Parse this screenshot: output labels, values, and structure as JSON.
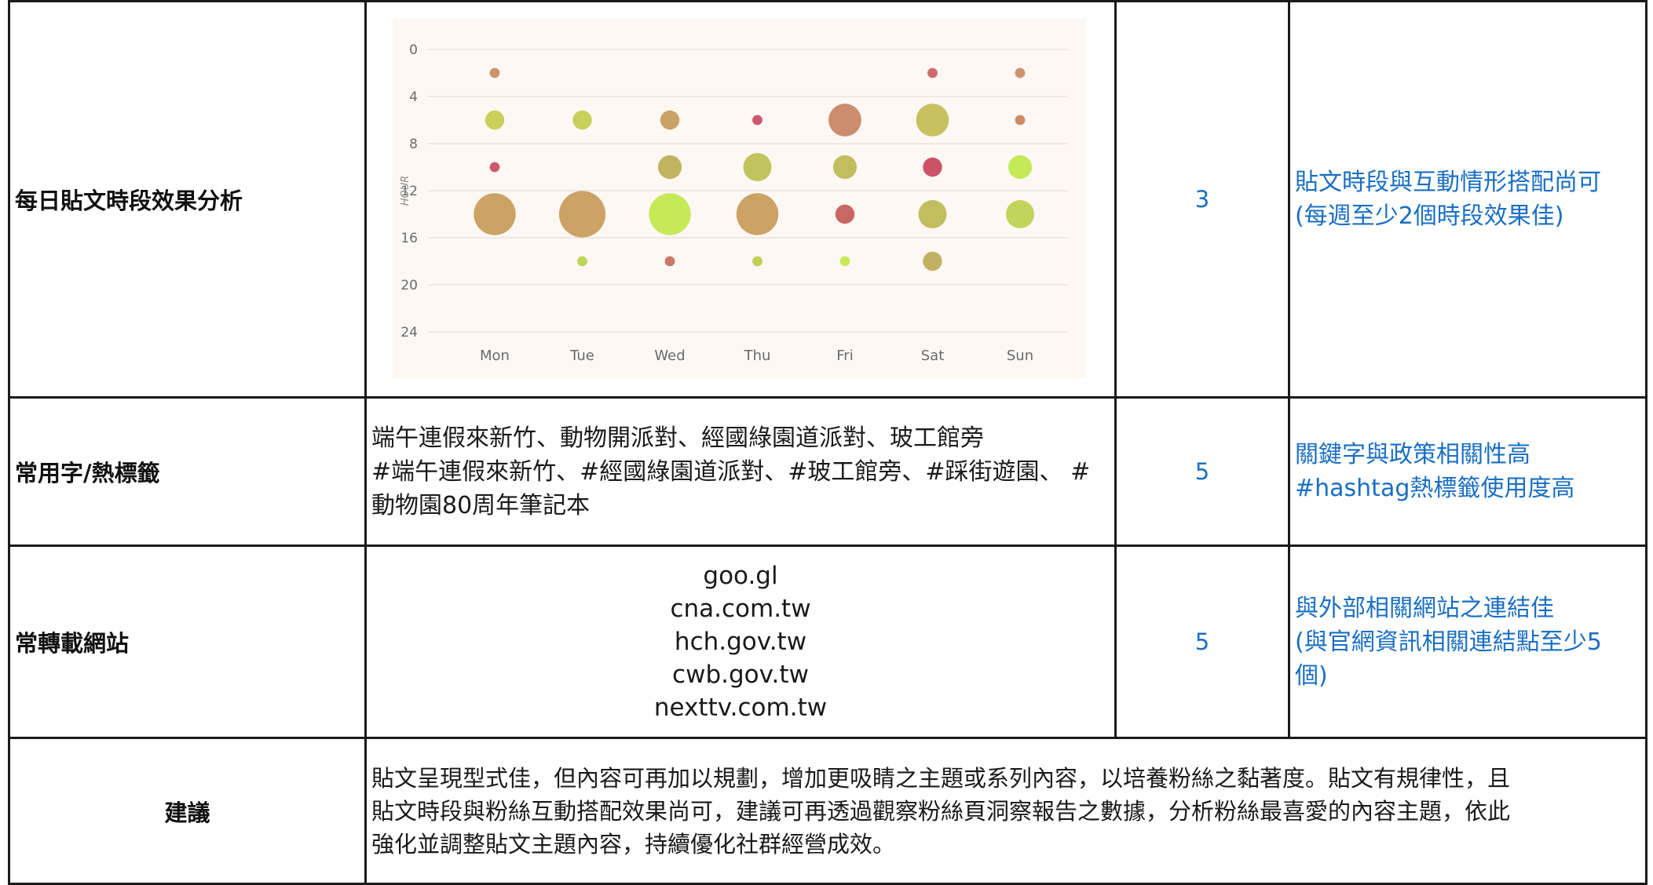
{
  "rows": {
    "posting_time": {
      "label": "每日貼文時段效果分析",
      "score": "3",
      "comment": [
        "貼文時段與互動情形搭配尚可",
        "(每週至少2個時段效果佳)"
      ]
    },
    "keywords": {
      "label": "常用字/熱標籤",
      "lines": [
        "端午連假來新竹、動物開派對、經國綠園道派對、玻工館旁",
        "#端午連假來新竹、#經國綠園道派對、#玻工館旁、#踩街遊園、 #",
        "動物園80周年筆記本"
      ],
      "score": "5",
      "comment": [
        "關鍵字與政策相關性高",
        "#hashtag熱標籤使用度高"
      ]
    },
    "sites": {
      "label": "常轉載網站",
      "items": [
        "goo.gl",
        "cna.com.tw",
        "hch.gov.tw",
        "cwb.gov.tw",
        "nexttv.com.tw"
      ],
      "score": "5",
      "comment": [
        "與外部相關網站之連結佳",
        "(與官網資訊相關連結點至少5",
        "個)"
      ]
    },
    "advice": {
      "label": "建議",
      "lines": [
        "貼文呈現型式佳，但內容可再加以規劃，增加更吸睛之主題或系列內容，以培養粉絲之黏著度。貼文有規律性，且",
        "貼文時段與粉絲互動搭配效果尚可，建議可再透過觀察粉絲頁洞察報告之數據，分析粉絲最喜愛的內容主題，依此",
        "強化並調整貼文主題內容，持續優化社群經營成效。"
      ]
    }
  },
  "chart_data": {
    "type": "scatter",
    "subtype": "bubble",
    "ylabel": "HOUR",
    "x_categories": [
      "Mon",
      "Tue",
      "Wed",
      "Thu",
      "Fri",
      "Sat",
      "Sun"
    ],
    "y_ticks": [
      0,
      4,
      8,
      12,
      16,
      20,
      24
    ],
    "ylim": [
      0,
      24
    ],
    "y_inverted": true,
    "grid": true,
    "background_color": "#fdf8f4",
    "points": [
      {
        "x": "Mon",
        "hour": 2,
        "size": 1,
        "color": "#c98a5c"
      },
      {
        "x": "Mon",
        "hour": 6,
        "size": 3,
        "color": "#c4cc4e"
      },
      {
        "x": "Mon",
        "hour": 10,
        "size": 1,
        "color": "#c94a62"
      },
      {
        "x": "Mon",
        "hour": 14,
        "size": 8,
        "color": "#c89a58"
      },
      {
        "x": "Tue",
        "hour": 6,
        "size": 3,
        "color": "#c4cc4e"
      },
      {
        "x": "Tue",
        "hour": 14,
        "size": 9,
        "color": "#c89a58"
      },
      {
        "x": "Tue",
        "hour": 18,
        "size": 1,
        "color": "#b8d24a"
      },
      {
        "x": "Wed",
        "hour": 6,
        "size": 3,
        "color": "#c49a58"
      },
      {
        "x": "Wed",
        "hour": 10,
        "size": 4,
        "color": "#bcae52"
      },
      {
        "x": "Wed",
        "hour": 14,
        "size": 8,
        "color": "#bfe84a"
      },
      {
        "x": "Wed",
        "hour": 18,
        "size": 1,
        "color": "#c86a5a"
      },
      {
        "x": "Thu",
        "hour": 6,
        "size": 1,
        "color": "#c94a62"
      },
      {
        "x": "Thu",
        "hour": 10,
        "size": 5,
        "color": "#bcbe4e"
      },
      {
        "x": "Thu",
        "hour": 14,
        "size": 8,
        "color": "#c89a58"
      },
      {
        "x": "Thu",
        "hour": 18,
        "size": 1,
        "color": "#b8cc4a"
      },
      {
        "x": "Fri",
        "hour": 6,
        "size": 6,
        "color": "#c88262"
      },
      {
        "x": "Fri",
        "hour": 10,
        "size": 4,
        "color": "#bcb852"
      },
      {
        "x": "Fri",
        "hour": 14,
        "size": 3,
        "color": "#c45a56"
      },
      {
        "x": "Fri",
        "hour": 18,
        "size": 1,
        "color": "#c2e84a"
      },
      {
        "x": "Sat",
        "hour": 2,
        "size": 1,
        "color": "#c9605a"
      },
      {
        "x": "Sat",
        "hour": 6,
        "size": 6,
        "color": "#c2bc52"
      },
      {
        "x": "Sat",
        "hour": 10,
        "size": 3,
        "color": "#c8445a"
      },
      {
        "x": "Sat",
        "hour": 14,
        "size": 5,
        "color": "#bcb852"
      },
      {
        "x": "Sat",
        "hour": 18,
        "size": 3,
        "color": "#bcaa52"
      },
      {
        "x": "Sun",
        "hour": 2,
        "size": 1,
        "color": "#c98a5c"
      },
      {
        "x": "Sun",
        "hour": 6,
        "size": 1,
        "color": "#c9805a"
      },
      {
        "x": "Sun",
        "hour": 10,
        "size": 4,
        "color": "#bfe84a"
      },
      {
        "x": "Sun",
        "hour": 14,
        "size": 5,
        "color": "#bcd04e"
      }
    ]
  }
}
